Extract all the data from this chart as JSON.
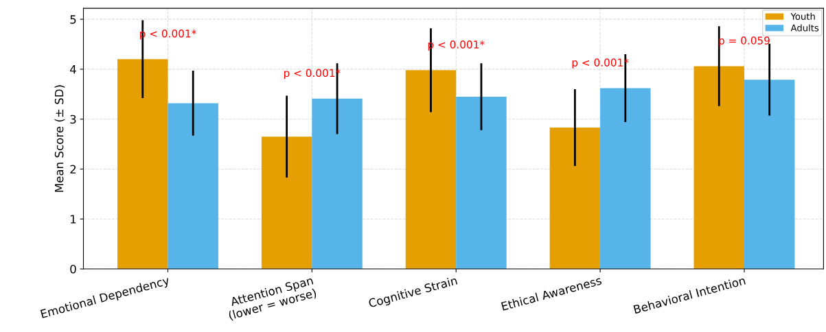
{
  "chart_data": {
    "type": "bar",
    "ylabel": "Mean Score (± SD)",
    "categories": [
      "Emotional Dependency",
      "Attention Span\n(lower = worse)",
      "Cognitive Strain",
      "Ethical Awareness",
      "Behavioral Intention"
    ],
    "series": [
      {
        "name": "Youth",
        "color": "#e69f00",
        "values": [
          4.2,
          2.65,
          3.98,
          2.83,
          4.06
        ],
        "errors": [
          0.78,
          0.82,
          0.84,
          0.77,
          0.8
        ]
      },
      {
        "name": "Adults",
        "color": "#56b4e9",
        "values": [
          3.32,
          3.41,
          3.45,
          3.62,
          3.79
        ],
        "errors": [
          0.65,
          0.71,
          0.67,
          0.68,
          0.72
        ]
      }
    ],
    "annotations": [
      "p < 0.001*",
      "p < 0.001*",
      "p < 0.001*",
      "p < 0.001*",
      "p = 0.059"
    ],
    "ylim": [
      0,
      5.22
    ],
    "yticks": [
      0,
      1,
      2,
      3,
      4,
      5
    ],
    "grid": true,
    "legend": "top right"
  }
}
